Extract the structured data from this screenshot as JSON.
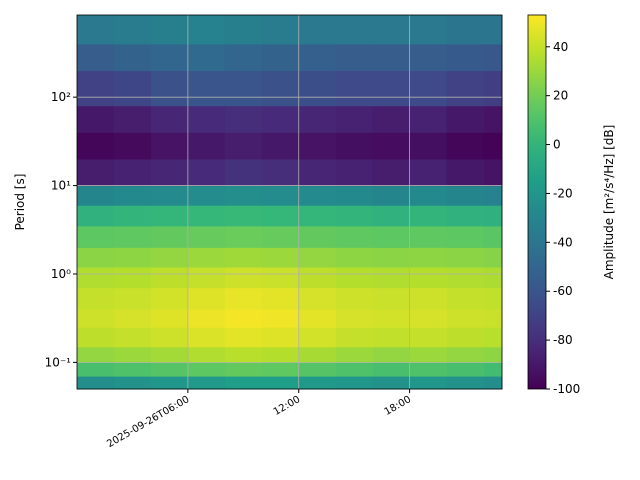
{
  "chart_data": {
    "type": "heatmap",
    "ylabel": "Period [s]",
    "colorbar_label": "Amplitude [m²/s⁴/Hz] [dB]",
    "colormap": "viridis",
    "yscale": "log",
    "grid": true,
    "xlim": [
      "2025-09-26T00:00",
      "2025-09-26T23:00"
    ],
    "xticks": [
      "2025-09-26T06:00",
      {
        "value": "2025-09-26T12:00",
        "label": "12:00"
      },
      {
        "value": "2025-09-26T18:00",
        "label": "18:00"
      }
    ],
    "ylim": [
      0.05,
      850
    ],
    "yticks": [
      {
        "value": 0.1,
        "label": "10⁻¹"
      },
      {
        "value": 1,
        "label": "10⁰"
      },
      {
        "value": 10,
        "label": "10¹"
      },
      {
        "value": 100,
        "label": "10²"
      }
    ],
    "clim": [
      -100,
      53
    ],
    "cticks": [
      -100,
      -80,
      -60,
      -40,
      -20,
      0,
      20,
      40
    ],
    "xbins": [
      "2025-09-26T00:00",
      "2025-09-26T02:00",
      "2025-09-26T04:00",
      "2025-09-26T06:00",
      "2025-09-26T08:00",
      "2025-09-26T10:00",
      "2025-09-26T12:00",
      "2025-09-26T14:00",
      "2025-09-26T16:00",
      "2025-09-26T18:00",
      "2025-09-26T20:00",
      "2025-09-26T22:00",
      "2025-09-26T23:00"
    ],
    "ybins": [
      0.05,
      0.07,
      0.1,
      0.15,
      0.25,
      0.4,
      0.7,
      1.2,
      2,
      3.5,
      6,
      10,
      20,
      40,
      80,
      200,
      400,
      850
    ],
    "values": [
      [
        -25,
        -22,
        -20,
        -18,
        -15,
        -15,
        -18,
        -20,
        -22,
        -20,
        -22,
        -25
      ],
      [
        8,
        10,
        12,
        14,
        16,
        15,
        12,
        10,
        8,
        10,
        8,
        6
      ],
      [
        28,
        30,
        32,
        35,
        37,
        36,
        33,
        30,
        28,
        30,
        28,
        27
      ],
      [
        38,
        40,
        42,
        45,
        47,
        46,
        43,
        40,
        39,
        40,
        38,
        37
      ],
      [
        42,
        44,
        46,
        49,
        51,
        50,
        47,
        44,
        43,
        44,
        42,
        41
      ],
      [
        40,
        41,
        43,
        46,
        48,
        47,
        44,
        42,
        41,
        42,
        40,
        39
      ],
      [
        35,
        36,
        38,
        40,
        42,
        41,
        38,
        36,
        35,
        36,
        35,
        34
      ],
      [
        26,
        27,
        28,
        30,
        31,
        30,
        28,
        27,
        26,
        27,
        26,
        25
      ],
      [
        14,
        15,
        16,
        17,
        18,
        17,
        16,
        15,
        14,
        15,
        14,
        13
      ],
      [
        -2,
        0,
        1,
        2,
        3,
        2,
        1,
        0,
        -2,
        0,
        -2,
        -3
      ],
      [
        -30,
        -28,
        -27,
        -26,
        -25,
        -26,
        -27,
        -28,
        -30,
        -28,
        -30,
        -32
      ],
      [
        -88,
        -86,
        -84,
        -82,
        -78,
        -80,
        -84,
        -86,
        -88,
        -86,
        -90,
        -92
      ],
      [
        -98,
        -96,
        -92,
        -90,
        -88,
        -90,
        -92,
        -94,
        -95,
        -94,
        -98,
        -99
      ],
      [
        -90,
        -88,
        -84,
        -82,
        -80,
        -82,
        -84,
        -86,
        -88,
        -86,
        -90,
        -92
      ],
      [
        -70,
        -68,
        -62,
        -60,
        -60,
        -62,
        -64,
        -66,
        -66,
        -66,
        -70,
        -72
      ],
      [
        -55,
        -52,
        -50,
        -48,
        -50,
        -52,
        -54,
        -55,
        -55,
        -55,
        -57,
        -58
      ],
      [
        -38,
        -36,
        -34,
        -32,
        -34,
        -36,
        -38,
        -38,
        -38,
        -38,
        -40,
        -40
      ]
    ]
  }
}
